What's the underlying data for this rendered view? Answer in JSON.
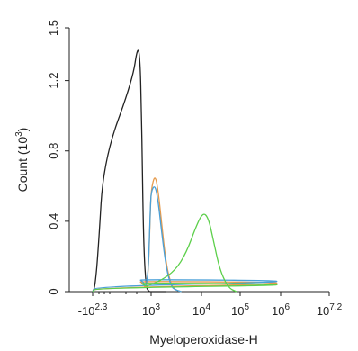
{
  "chart_data": {
    "type": "line",
    "title": "",
    "xlabel": "Myeloperoxidase-H",
    "ylabel": "Count (10",
    "ylabel_sup": "3",
    "ylabel_close": ")",
    "x_scale": "biexponential (log)",
    "xlim": [
      -200,
      15800000
    ],
    "ylim": [
      0,
      1.5
    ],
    "grid": false,
    "legend": "none",
    "x_ticks": [
      {
        "value": -200,
        "base": "-10",
        "exp": "2.3"
      },
      {
        "value": 1000,
        "base": "10",
        "exp": "3"
      },
      {
        "value": 10000,
        "base": "10",
        "exp": "4"
      },
      {
        "value": 100000,
        "base": "10",
        "exp": "5"
      },
      {
        "value": 1000000,
        "base": "10",
        "exp": "6"
      },
      {
        "value": 15800000,
        "base": "10",
        "exp": "7.2"
      }
    ],
    "y_ticks": [
      "0",
      "0.4",
      "0.8",
      "1.2",
      "1.5"
    ],
    "y_tick_values": [
      0,
      0.4,
      0.8,
      1.2,
      1.5
    ],
    "series": [
      {
        "color": "#222222",
        "x": [
          -200,
          -120,
          -60,
          -20,
          20,
          60,
          100,
          130,
          160,
          200,
          260,
          330,
          400,
          500,
          700,
          1000,
          2000
        ],
        "y": [
          0.0,
          0.03,
          0.25,
          0.75,
          1.2,
          1.4,
          1.32,
          1.05,
          0.7,
          0.35,
          0.15,
          0.06,
          0.02,
          0.01,
          0.0,
          0.0,
          0.0
        ]
      },
      {
        "color": "#e59a4c",
        "x": [
          -200,
          -100,
          0,
          80,
          150,
          220,
          300,
          400,
          550,
          700,
          850,
          1000,
          1200,
          1400,
          1600,
          2000,
          2500,
          3000,
          4000
        ],
        "y": [
          0.0,
          0.02,
          0.05,
          0.06,
          0.05,
          0.04,
          0.02,
          0.04,
          0.12,
          0.28,
          0.45,
          0.58,
          0.67,
          0.56,
          0.4,
          0.15,
          0.04,
          0.01,
          0.0
        ]
      },
      {
        "color": "#4aa0d8",
        "x": [
          -200,
          -100,
          0,
          80,
          150,
          220,
          300,
          400,
          550,
          700,
          850,
          1000,
          1200,
          1400,
          1600,
          2000,
          2500,
          3000,
          4000
        ],
        "y": [
          0.0,
          0.03,
          0.06,
          0.07,
          0.06,
          0.05,
          0.03,
          0.05,
          0.13,
          0.3,
          0.47,
          0.57,
          0.61,
          0.5,
          0.35,
          0.13,
          0.03,
          0.01,
          0.0
        ]
      },
      {
        "color": "#5ccf4a",
        "x": [
          -200,
          -100,
          0,
          100,
          200,
          400,
          800,
          1500,
          3000,
          5000,
          8000,
          11000,
          15000,
          20000,
          30000,
          50000,
          80000
        ],
        "y": [
          0.0,
          0.02,
          0.04,
          0.05,
          0.04,
          0.03,
          0.04,
          0.06,
          0.12,
          0.22,
          0.38,
          0.45,
          0.42,
          0.3,
          0.12,
          0.02,
          0.0
        ]
      }
    ]
  }
}
